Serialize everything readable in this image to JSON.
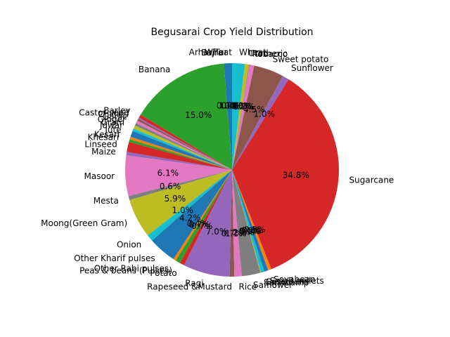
{
  "chart_data": {
    "type": "pie",
    "title": "Begusarai Crop Yield Distribution",
    "start_angle_deg": 90,
    "direction": "counterclockwise",
    "slices": [
      {
        "label": "Arhar/Tur",
        "value": 1.2,
        "pct_text": "1.2%",
        "color": "#1f77b4"
      },
      {
        "label": "Bajra",
        "value": 0.0,
        "pct_text": "0.0%",
        "color": "#ff7f0e"
      },
      {
        "label": "Banana",
        "value": 15.0,
        "pct_text": "15.0%",
        "color": "#2ca02c"
      },
      {
        "label": "Barley",
        "value": 0.5,
        "pct_text": "",
        "color": "#d62728"
      },
      {
        "label": "Castor seed",
        "value": 0.2,
        "pct_text": "",
        "color": "#9467bd"
      },
      {
        "label": "Chillies",
        "value": 0.3,
        "pct_text": "",
        "color": "#8c564b"
      },
      {
        "label": "Garlic",
        "value": 0.4,
        "pct_text": "",
        "color": "#e377c2"
      },
      {
        "label": "Ginger",
        "value": 0.4,
        "pct_text": "",
        "color": "#7f7f7f"
      },
      {
        "label": "Gram",
        "value": 0.5,
        "pct_text": "",
        "color": "#bcbd22"
      },
      {
        "label": "Jowar",
        "value": 0.4,
        "pct_text": "",
        "color": "#17becf"
      },
      {
        "label": "Jute",
        "value": 0.9,
        "pct_text": "",
        "color": "#1f77b4"
      },
      {
        "label": "Kesari",
        "value": 0.4,
        "pct_text": "",
        "color": "#ff7f0e"
      },
      {
        "label": "Khesari",
        "value": 0.4,
        "pct_text": "",
        "color": "#2ca02c"
      },
      {
        "label": "Linseed",
        "value": 1.5,
        "pct_text": "",
        "color": "#d62728"
      },
      {
        "label": "Maize",
        "value": 0.5,
        "pct_text": "",
        "color": "#9467bd"
      },
      {
        "label": "Masoor",
        "value": 6.1,
        "pct_text": "6.1%",
        "color": "#e377c2"
      },
      {
        "label": "Mesta",
        "value": 0.6,
        "pct_text": "0.6%",
        "color": "#7f7f7f"
      },
      {
        "label": "Moong(Green Gram)",
        "value": 5.9,
        "pct_text": "5.9%",
        "color": "#bcbd22"
      },
      {
        "label": "Onion",
        "value": 1.0,
        "pct_text": "1.0%",
        "color": "#17becf"
      },
      {
        "label": "Other Kharif pulses",
        "value": 4.2,
        "pct_text": "4.2%",
        "color": "#1f77b4"
      },
      {
        "label": "Other Rabi pulses",
        "value": 0.4,
        "pct_text": "0.4%",
        "color": "#ff7f0e"
      },
      {
        "label": "Peas & beans (Pulses)",
        "value": 0.7,
        "pct_text": "0.7%",
        "color": "#2ca02c"
      },
      {
        "label": "Potato",
        "value": 0.7,
        "pct_text": "0.7%",
        "color": "#d62728"
      },
      {
        "label": "Ragi",
        "value": 7.0,
        "pct_text": "7.0%",
        "color": "#9467bd"
      },
      {
        "label": "Rapeseed &Mustard",
        "value": 0.7,
        "pct_text": "0.7%",
        "color": "#8c564b"
      },
      {
        "label": "Rice",
        "value": 1.1,
        "pct_text": "1.1%",
        "color": "#e377c2"
      },
      {
        "label": "Safflower",
        "value": 2.8,
        "pct_text": "2.8%",
        "color": "#7f7f7f"
      },
      {
        "label": "Sannhamp",
        "value": 0.1,
        "pct_text": "0.1%",
        "color": "#bcbd22"
      },
      {
        "label": "Sesamum",
        "value": 0.5,
        "pct_text": "0.5%",
        "color": "#17becf"
      },
      {
        "label": "Small millets",
        "value": 0.6,
        "pct_text": "0.6%",
        "color": "#1f77b4"
      },
      {
        "label": "Soyabean",
        "value": 0.5,
        "pct_text": "0.5%",
        "color": "#ff7f0e"
      },
      {
        "label": "Sugarcane",
        "value": 34.8,
        "pct_text": "34.8%",
        "color": "#d62728"
      },
      {
        "label": "Sunflower",
        "value": 1.0,
        "pct_text": "1.0%",
        "color": "#9467bd"
      },
      {
        "label": "Sweet potato",
        "value": 4.5,
        "pct_text": "4.5%",
        "color": "#8c564b"
      },
      {
        "label": "Tobacco",
        "value": 0.7,
        "pct_text": "0.7%",
        "color": "#e377c2"
      },
      {
        "label": "Turmeric",
        "value": 0.1,
        "pct_text": "0.1%",
        "color": "#7f7f7f"
      },
      {
        "label": "Urad",
        "value": 0.6,
        "pct_text": "0.6%",
        "color": "#bcbd22"
      },
      {
        "label": "Wheat",
        "value": 1.9,
        "pct_text": "1.9%",
        "color": "#17becf"
      },
      {
        "label": "Wheat",
        "value": 0.0,
        "pct_text": "0.0%",
        "color": "#1f77b4"
      }
    ]
  }
}
